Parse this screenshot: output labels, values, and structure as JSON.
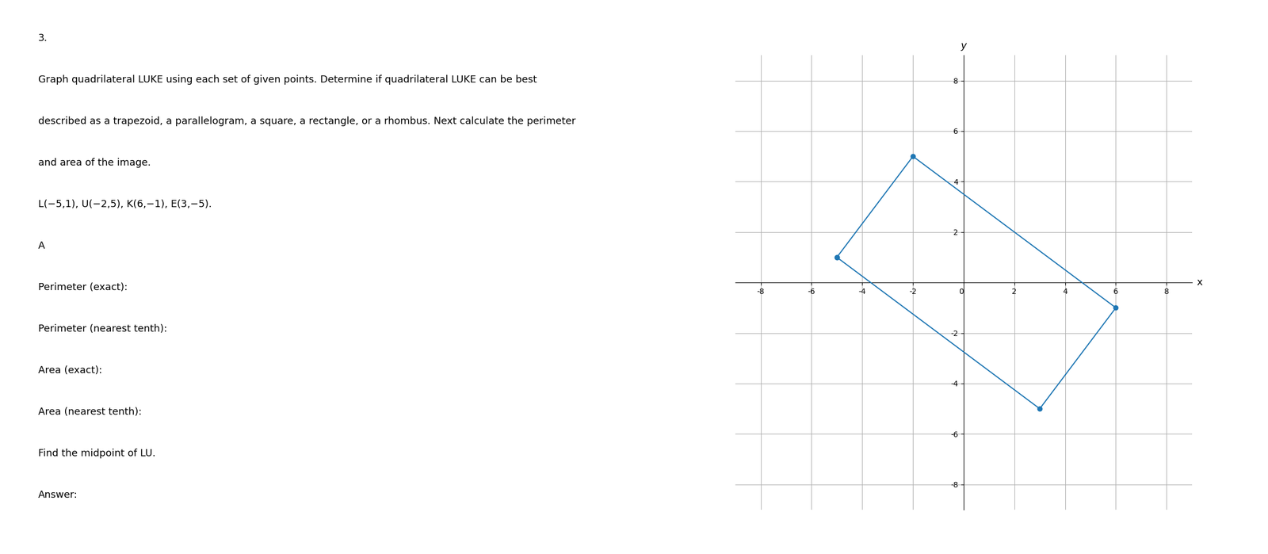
{
  "chart_data": {
    "type": "line",
    "x": [
      -5,
      -2,
      6,
      3,
      -5
    ],
    "values": [
      1,
      5,
      -1,
      -5,
      1
    ],
    "marker": "o",
    "xlabel": "x",
    "ylabel": "y",
    "xlim": [
      -9,
      9
    ],
    "ylim": [
      -9,
      9
    ],
    "xticks": [
      -8,
      -6,
      -4,
      -2,
      0,
      2,
      4,
      6,
      8
    ],
    "yticks": [
      -8,
      -6,
      -4,
      -2,
      2,
      4,
      6,
      8
    ],
    "grid": true,
    "annotations": [
      "3.",
      "Graph quadrilateral LUKE using each set of given points. Determine if quadrilateral LUKE can be best",
      "described as a trapezoid, a parallelogram, a square, a rectangle, or a rhombus. Next calculate the perimeter",
      "and area of the image.",
      "L(−5,1), U(−2,5), K(6,−1), E(3,−5).",
      "A",
      "Perimeter (exact):",
      "Perimeter (nearest tenth):",
      "Area (exact):",
      "Area (nearest tenth):",
      "Find the midpoint of LU.",
      "Answer:"
    ]
  }
}
